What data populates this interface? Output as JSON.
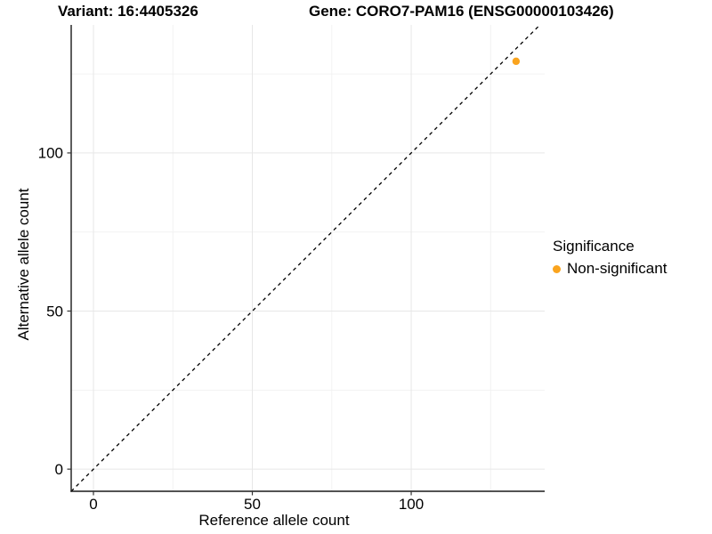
{
  "header": {
    "title_left": "Variant: 16:4405326",
    "title_right": "Gene: CORO7-PAM16 (ENSG00000103426)"
  },
  "chart_data": {
    "type": "scatter",
    "xlabel": "Reference allele count",
    "ylabel": "Alternative allele count",
    "x_ticks": [
      0,
      50,
      100
    ],
    "y_ticks": [
      0,
      50,
      100
    ],
    "x_minor_ticks": [
      25,
      75,
      125
    ],
    "y_minor_ticks": [
      25,
      75,
      125
    ],
    "xlim": [
      -7,
      142
    ],
    "ylim": [
      -7,
      140.5
    ],
    "grid": true,
    "legend_position": "right",
    "identity_line": {
      "equation": "y = x",
      "style": "dashed",
      "color": "#000000"
    },
    "series": [
      {
        "name": "Non-significant",
        "color": "#FAA41E",
        "points": [
          {
            "x": 133,
            "y": 129
          }
        ]
      }
    ]
  },
  "legend": {
    "title": "Significance",
    "items": [
      {
        "label": "Non-significant",
        "color": "#FAA41E"
      }
    ]
  },
  "colors": {
    "background": "#FFFFFF",
    "axis_line": "#1a1a1a",
    "tick": "#333333",
    "grid_major": "#E7E7E7",
    "grid_minor": "#F2F2F2",
    "text": "#000000",
    "point": "#FAA41E"
  }
}
